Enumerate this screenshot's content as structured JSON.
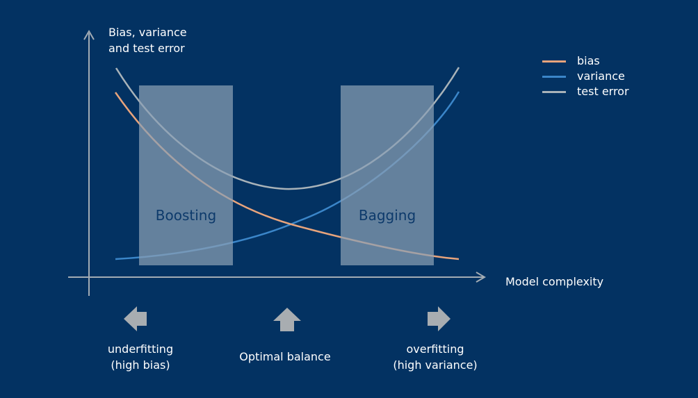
{
  "axes": {
    "y_label_line1": "Bias, variance",
    "y_label_line2": "and test error",
    "x_label": "Model complexity"
  },
  "regions": {
    "left": "Boosting",
    "right": "Bagging"
  },
  "legend": [
    {
      "label": "bias",
      "color": "#e8a47c"
    },
    {
      "label": "variance",
      "color": "#3b86c9"
    },
    {
      "label": "test error",
      "color": "#a9b3b9"
    }
  ],
  "bottom": {
    "left_line1": "underfitting",
    "left_line2": "(high bias)",
    "center": "Optimal balance",
    "right_line1": "overfitting",
    "right_line2": "(high variance)"
  },
  "colors": {
    "background": "#033262",
    "axis": "#a3acb4",
    "band": "#7d93a8",
    "arrow": "#a8adb1"
  },
  "icons": [
    "arrow-left-icon",
    "arrow-up-icon",
    "arrow-right-icon"
  ]
}
